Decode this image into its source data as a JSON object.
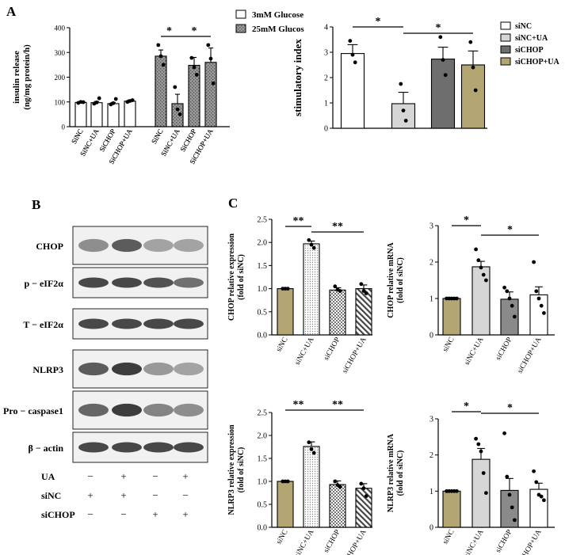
{
  "panels": {
    "A": "A",
    "B": "B",
    "C": "C"
  },
  "chart_data": [
    {
      "id": "a1",
      "type": "bar",
      "ylabel": "insulin release",
      "ylabel2": "(ng/mg protein/h)",
      "ylim": [
        0,
        400
      ],
      "yticks": [
        "0",
        "100",
        "200",
        "300",
        "400"
      ],
      "categories": [
        "SiNC",
        "SiNC+UA",
        "SiCHOP",
        "SiCHOP+UA",
        "SiNC",
        "SiNC+UA",
        "SiCHOP",
        "SiCHOP+UA"
      ],
      "values": [
        98,
        97,
        93,
        103,
        285,
        93,
        248,
        260
      ],
      "errors": [
        4,
        5,
        5,
        5,
        25,
        38,
        32,
        58
      ],
      "groups": [
        "g3",
        "g3",
        "g3",
        "g3",
        "g25",
        "g25",
        "g25",
        "g25"
      ],
      "points": [
        [
          96,
          100,
          99
        ],
        [
          93,
          98,
          115
        ],
        [
          90,
          95,
          112
        ],
        [
          100,
          104,
          107
        ],
        [
          330,
          285,
          250
        ],
        [
          160,
          70,
          50
        ],
        [
          278,
          240,
          210
        ],
        [
          330,
          275,
          175
        ]
      ],
      "legend": [
        {
          "key": "g3",
          "label": "3mM Glucose"
        },
        {
          "key": "g25",
          "label": "25mM Glucos"
        }
      ],
      "sig": [
        {
          "from": 4,
          "to": 5,
          "label": "*"
        },
        {
          "from": 5,
          "to": 7,
          "label": "*"
        }
      ]
    },
    {
      "id": "a2",
      "type": "bar",
      "ylabel": "stimulatory index",
      "ylim": [
        0,
        4
      ],
      "yticks": [
        "0",
        "1",
        "2",
        "3",
        "4"
      ],
      "categories": [
        "siNC",
        "siNC+UA",
        "siCHOP",
        "siCHOP+UA"
      ],
      "values": [
        2.95,
        0.97,
        2.73,
        2.5
      ],
      "errors": [
        0.35,
        0.45,
        0.47,
        0.55
      ],
      "points": [
        [
          3.45,
          2.9,
          2.6
        ],
        [
          1.75,
          0.7,
          0.3
        ],
        [
          3.6,
          2.7,
          2.1
        ],
        [
          3.4,
          2.4,
          1.5
        ]
      ],
      "legend": [
        {
          "key": "s0",
          "label": "siNC"
        },
        {
          "key": "s1",
          "label": "siNC+UA"
        },
        {
          "key": "s2",
          "label": "siCHOP"
        },
        {
          "key": "s3",
          "label": "siCHOP+UA"
        }
      ],
      "sig": [
        {
          "from": 0,
          "to": 1,
          "label": "*"
        },
        {
          "from": 1,
          "to": 3,
          "label": "*"
        }
      ]
    },
    {
      "id": "c1",
      "type": "bar",
      "ylabel": "CHOP relative expression",
      "ylabel2": "(fold of siNC)",
      "ylim": [
        0,
        2.5
      ],
      "yticks": [
        "0.0",
        "0.5",
        "1.0",
        "1.5",
        "2.0",
        "2.5"
      ],
      "categories": [
        "siNC",
        "siNC+UA",
        "siCHOP",
        "siCHOP+UA"
      ],
      "values": [
        1.0,
        1.97,
        0.97,
        1.0
      ],
      "errors": [
        0.01,
        0.06,
        0.05,
        0.08
      ],
      "points": [
        [
          1.0,
          1.0,
          1.0
        ],
        [
          2.05,
          1.95,
          1.88
        ],
        [
          1.05,
          0.98,
          0.95
        ],
        [
          1.1,
          0.95,
          0.9
        ]
      ],
      "sig": [
        {
          "from": 0,
          "to": 1,
          "label": "**"
        },
        {
          "from": 1,
          "to": 3,
          "label": "**"
        }
      ]
    },
    {
      "id": "c2",
      "type": "bar",
      "ylabel": "CHOP relative mRNA",
      "ylabel2": "(fold of siNC)",
      "ylim": [
        0,
        3
      ],
      "yticks": [
        "0",
        "1",
        "2",
        "3"
      ],
      "categories": [
        "siNC",
        "siNC+UA",
        "siCHOP",
        "siCHOP+UA"
      ],
      "values": [
        1.0,
        1.87,
        0.98,
        1.1
      ],
      "errors": [
        0.01,
        0.15,
        0.2,
        0.22
      ],
      "points": [
        [
          1.0,
          1.0,
          1.0,
          1.0,
          1.0
        ],
        [
          2.35,
          2.05,
          1.85,
          1.65,
          1.5
        ],
        [
          1.3,
          1.2,
          1.0,
          0.8,
          0.5
        ],
        [
          2.0,
          1.2,
          1.0,
          0.8,
          0.6
        ]
      ],
      "sig": [
        {
          "from": 0,
          "to": 1,
          "label": "*"
        },
        {
          "from": 1,
          "to": 3,
          "label": "*"
        }
      ]
    },
    {
      "id": "c3",
      "type": "bar",
      "ylabel": "NLRP3 relative expression",
      "ylabel2": "(fold of siNC)",
      "ylim": [
        0,
        2.5
      ],
      "yticks": [
        "0.0",
        "0.5",
        "1.0",
        "1.5",
        "2.0",
        "2.5"
      ],
      "categories": [
        "siNC",
        "siNC+UA",
        "siCHOP",
        "siCHOP+UA"
      ],
      "values": [
        1.0,
        1.76,
        0.93,
        0.85
      ],
      "errors": [
        0.01,
        0.1,
        0.08,
        0.1
      ],
      "points": [
        [
          1.0,
          1.0,
          1.0
        ],
        [
          1.85,
          1.7,
          1.62
        ],
        [
          1.0,
          0.92,
          0.88
        ],
        [
          0.95,
          0.85,
          0.68
        ]
      ],
      "sig": [
        {
          "from": 0,
          "to": 1,
          "label": "**"
        },
        {
          "from": 1,
          "to": 3,
          "label": "**"
        }
      ]
    },
    {
      "id": "c4",
      "type": "bar",
      "ylabel": "NLRP3 relative mRNA",
      "ylabel2": "(fold of siNC)",
      "ylim": [
        0,
        3
      ],
      "yticks": [
        "0",
        "1",
        "2",
        "3"
      ],
      "categories": [
        "siNC",
        "siNC+UA",
        "siCHOP",
        "siCHOP+UA"
      ],
      "values": [
        1.0,
        1.88,
        1.02,
        1.05
      ],
      "errors": [
        0.01,
        0.3,
        0.33,
        0.17
      ],
      "points": [
        [
          1.0,
          1.0,
          1.0,
          1.0,
          1.0
        ],
        [
          2.45,
          2.3,
          2.1,
          1.5,
          0.95
        ],
        [
          2.6,
          1.4,
          0.9,
          0.55,
          0.2
        ],
        [
          1.55,
          1.25,
          0.9,
          0.85,
          0.75
        ]
      ],
      "sig": [
        {
          "from": 0,
          "to": 1,
          "label": "*"
        },
        {
          "from": 1,
          "to": 3,
          "label": "*"
        }
      ]
    }
  ],
  "blot": {
    "rows": [
      {
        "label": "CHOP",
        "intensity": [
          0.55,
          0.8,
          0.45,
          0.45
        ]
      },
      {
        "label": "p − eIF2α",
        "intensity": [
          0.9,
          0.9,
          0.85,
          0.7
        ]
      },
      {
        "label": "T − eIF2α",
        "intensity": [
          0.9,
          0.9,
          0.9,
          0.9
        ]
      },
      {
        "label": "NLRP3",
        "intensity": [
          0.8,
          0.95,
          0.5,
          0.45
        ]
      },
      {
        "label": "Pro − caspase1",
        "intensity": [
          0.75,
          0.95,
          0.6,
          0.55
        ]
      },
      {
        "label": "β − actin",
        "intensity": [
          0.9,
          0.9,
          0.9,
          0.9
        ]
      }
    ],
    "conditions": [
      {
        "label": "UA",
        "values": [
          "−",
          "+",
          "−",
          "+"
        ]
      },
      {
        "label": "siNC",
        "values": [
          "+",
          "+",
          "−",
          "−"
        ]
      },
      {
        "label": "siCHOP",
        "values": [
          "−",
          "−",
          "+",
          "+"
        ]
      }
    ]
  },
  "colors": {
    "khaki": "#b3a673",
    "light_gray": "#d6d6d6",
    "mid_gray": "#8a8a8a",
    "dark_gray": "#6e6e6e",
    "white": "#ffffff",
    "black": "#000000"
  }
}
